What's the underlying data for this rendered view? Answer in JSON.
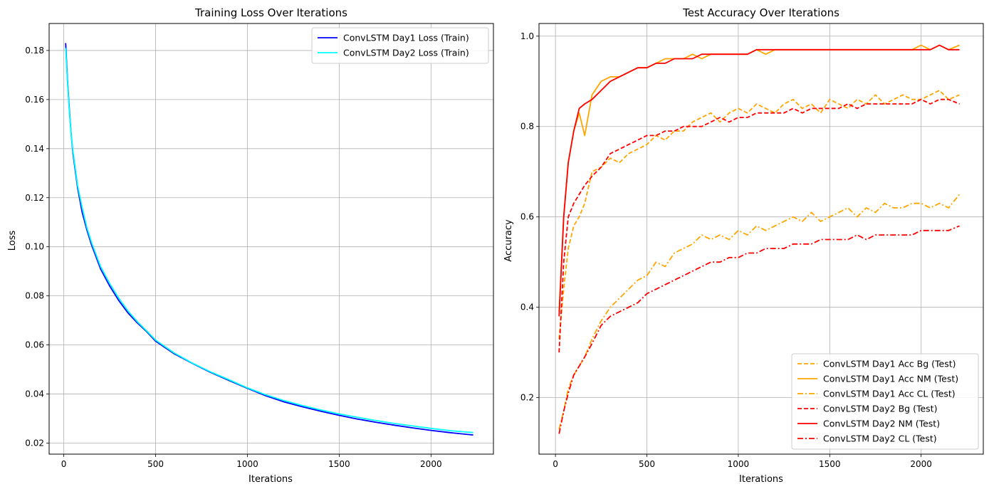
{
  "chart_data": [
    {
      "type": "line",
      "title": "Training Loss Over Iterations",
      "xlabel": "Iterations",
      "ylabel": "Loss",
      "xlim": [
        -80,
        2340
      ],
      "ylim": [
        0.0155,
        0.191
      ],
      "xticks": [
        0,
        500,
        1000,
        1500,
        2000
      ],
      "yticks": [
        0.02,
        0.04,
        0.06,
        0.08,
        0.1,
        0.12,
        0.14,
        0.16,
        0.18
      ],
      "ytick_labels": [
        "0.02",
        "0.04",
        "0.06",
        "0.08",
        "0.10",
        "0.12",
        "0.14",
        "0.16",
        "0.18"
      ],
      "grid": true,
      "legend_position": "top-right",
      "x": [
        10,
        20,
        30,
        40,
        50,
        75,
        100,
        125,
        150,
        200,
        250,
        300,
        350,
        400,
        450,
        500,
        600,
        700,
        800,
        900,
        1000,
        1100,
        1200,
        1300,
        1400,
        1500,
        1600,
        1700,
        1800,
        1900,
        2000,
        2100,
        2230
      ],
      "series": [
        {
          "name": "ConvLSTM Day1 Loss (Train)",
          "color": "#0000ff",
          "style": "solid",
          "values": [
            0.183,
            0.168,
            0.156,
            0.146,
            0.138,
            0.124,
            0.114,
            0.107,
            0.101,
            0.091,
            0.084,
            0.078,
            0.073,
            0.069,
            0.0655,
            0.0615,
            0.0565,
            0.0525,
            0.0488,
            0.0455,
            0.0423,
            0.0393,
            0.0368,
            0.0348,
            0.033,
            0.0313,
            0.0298,
            0.0285,
            0.0273,
            0.0262,
            0.0252,
            0.0243,
            0.0233
          ]
        },
        {
          "name": "ConvLSTM Day2 Loss (Train)",
          "color": "#00ffff",
          "style": "solid",
          "values": [
            0.181,
            0.167,
            0.155,
            0.146,
            0.139,
            0.125,
            0.116,
            0.108,
            0.102,
            0.092,
            0.085,
            0.079,
            0.0738,
            0.0695,
            0.0658,
            0.062,
            0.0568,
            0.0526,
            0.049,
            0.0458,
            0.0425,
            0.0397,
            0.0373,
            0.0353,
            0.0335,
            0.0319,
            0.0305,
            0.0292,
            0.028,
            0.027,
            0.026,
            0.0251,
            0.0243
          ]
        }
      ]
    },
    {
      "type": "line",
      "title": "Test Accuracy Over Iterations",
      "xlabel": "Iterations",
      "ylabel": "Accuracy",
      "xlim": [
        -90,
        2340
      ],
      "ylim": [
        0.075,
        1.028
      ],
      "xticks": [
        0,
        500,
        1000,
        1500,
        2000
      ],
      "yticks": [
        0.2,
        0.4,
        0.6,
        0.8,
        1.0
      ],
      "ytick_labels": [
        "0.2",
        "0.4",
        "0.6",
        "0.8",
        "1.0"
      ],
      "grid": true,
      "legend_position": "bottom-right",
      "x": [
        20,
        45,
        70,
        100,
        130,
        160,
        200,
        250,
        300,
        350,
        400,
        450,
        500,
        550,
        600,
        650,
        700,
        750,
        800,
        850,
        900,
        950,
        1000,
        1050,
        1100,
        1150,
        1200,
        1250,
        1300,
        1350,
        1400,
        1450,
        1500,
        1550,
        1600,
        1650,
        1700,
        1750,
        1800,
        1850,
        1900,
        1950,
        2000,
        2050,
        2100,
        2150,
        2210
      ],
      "series": [
        {
          "name": "ConvLSTM Day1 Acc Bg (Test)",
          "color": "#ffa500",
          "style": "dashed",
          "values": [
            0.33,
            0.44,
            0.53,
            0.58,
            0.6,
            0.63,
            0.7,
            0.71,
            0.73,
            0.72,
            0.74,
            0.75,
            0.76,
            0.78,
            0.77,
            0.79,
            0.79,
            0.81,
            0.82,
            0.83,
            0.81,
            0.83,
            0.84,
            0.83,
            0.85,
            0.84,
            0.83,
            0.85,
            0.86,
            0.84,
            0.85,
            0.83,
            0.86,
            0.85,
            0.84,
            0.86,
            0.85,
            0.87,
            0.85,
            0.86,
            0.87,
            0.86,
            0.86,
            0.87,
            0.88,
            0.86,
            0.87
          ]
        },
        {
          "name": "ConvLSTM Day1 Acc NM (Test)",
          "color": "#ffa500",
          "style": "solid",
          "values": [
            0.39,
            0.6,
            0.72,
            0.79,
            0.83,
            0.78,
            0.87,
            0.9,
            0.91,
            0.91,
            0.92,
            0.93,
            0.93,
            0.94,
            0.95,
            0.95,
            0.95,
            0.96,
            0.95,
            0.96,
            0.96,
            0.96,
            0.96,
            0.96,
            0.97,
            0.96,
            0.97,
            0.97,
            0.97,
            0.97,
            0.97,
            0.97,
            0.97,
            0.97,
            0.97,
            0.97,
            0.97,
            0.97,
            0.97,
            0.97,
            0.97,
            0.97,
            0.98,
            0.97,
            0.98,
            0.97,
            0.98
          ]
        },
        {
          "name": "ConvLSTM Day1 Acc CL (Test)",
          "color": "#ffa500",
          "style": "dashdot",
          "values": [
            0.13,
            0.17,
            0.22,
            0.25,
            0.27,
            0.29,
            0.33,
            0.37,
            0.4,
            0.42,
            0.44,
            0.46,
            0.47,
            0.5,
            0.49,
            0.52,
            0.53,
            0.54,
            0.56,
            0.55,
            0.56,
            0.55,
            0.57,
            0.56,
            0.58,
            0.57,
            0.58,
            0.59,
            0.6,
            0.59,
            0.61,
            0.59,
            0.6,
            0.61,
            0.62,
            0.6,
            0.62,
            0.61,
            0.63,
            0.62,
            0.62,
            0.63,
            0.63,
            0.62,
            0.63,
            0.62,
            0.65
          ]
        },
        {
          "name": "ConvLSTM Day2 Bg (Test)",
          "color": "#ff0000",
          "style": "dashed",
          "values": [
            0.3,
            0.5,
            0.6,
            0.63,
            0.65,
            0.67,
            0.69,
            0.71,
            0.74,
            0.75,
            0.76,
            0.77,
            0.78,
            0.78,
            0.79,
            0.79,
            0.8,
            0.8,
            0.8,
            0.81,
            0.82,
            0.81,
            0.82,
            0.82,
            0.83,
            0.83,
            0.83,
            0.83,
            0.84,
            0.83,
            0.84,
            0.84,
            0.84,
            0.84,
            0.85,
            0.84,
            0.85,
            0.85,
            0.85,
            0.85,
            0.85,
            0.85,
            0.86,
            0.85,
            0.86,
            0.86,
            0.85
          ]
        },
        {
          "name": "ConvLSTM Day2 NM (Test)",
          "color": "#ff0000",
          "style": "solid",
          "values": [
            0.38,
            0.6,
            0.72,
            0.79,
            0.84,
            0.85,
            0.86,
            0.88,
            0.9,
            0.91,
            0.92,
            0.93,
            0.93,
            0.94,
            0.94,
            0.95,
            0.95,
            0.95,
            0.96,
            0.96,
            0.96,
            0.96,
            0.96,
            0.96,
            0.97,
            0.97,
            0.97,
            0.97,
            0.97,
            0.97,
            0.97,
            0.97,
            0.97,
            0.97,
            0.97,
            0.97,
            0.97,
            0.97,
            0.97,
            0.97,
            0.97,
            0.97,
            0.97,
            0.97,
            0.98,
            0.97,
            0.97
          ]
        },
        {
          "name": "ConvLSTM Day2 CL (Test)",
          "color": "#ff0000",
          "style": "dashdot",
          "values": [
            0.12,
            0.17,
            0.21,
            0.25,
            0.27,
            0.29,
            0.32,
            0.36,
            0.38,
            0.39,
            0.4,
            0.41,
            0.43,
            0.44,
            0.45,
            0.46,
            0.47,
            0.48,
            0.49,
            0.5,
            0.5,
            0.51,
            0.51,
            0.52,
            0.52,
            0.53,
            0.53,
            0.53,
            0.54,
            0.54,
            0.54,
            0.55,
            0.55,
            0.55,
            0.55,
            0.56,
            0.55,
            0.56,
            0.56,
            0.56,
            0.56,
            0.56,
            0.57,
            0.57,
            0.57,
            0.57,
            0.58
          ]
        }
      ]
    }
  ]
}
